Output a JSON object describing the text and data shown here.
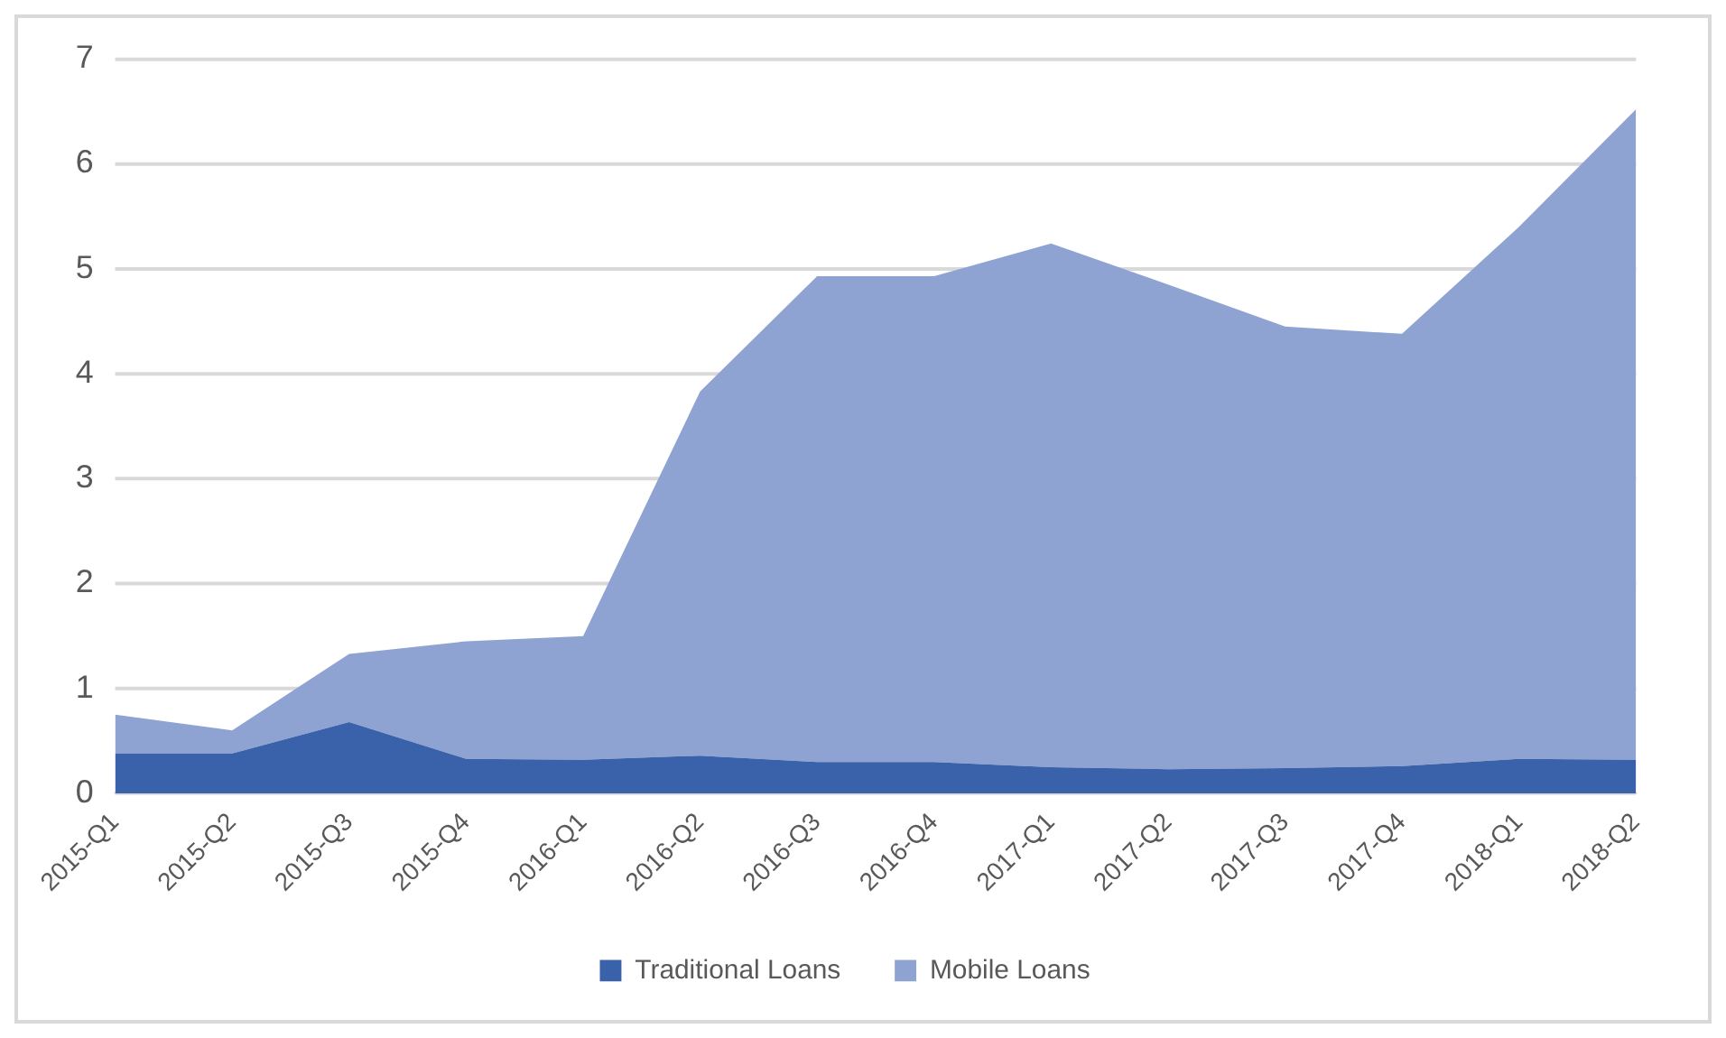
{
  "chart_data": {
    "type": "area",
    "stacked": true,
    "categories": [
      "2015-Q1",
      "2015-Q2",
      "2015-Q3",
      "2015-Q4",
      "2016-Q1",
      "2016-Q2",
      "2016-Q3",
      "2016-Q4",
      "2017-Q1",
      "2017-Q2",
      "2017-Q3",
      "2017-Q4",
      "2018-Q1",
      "2018-Q2"
    ],
    "series": [
      {
        "name": "Traditional Loans",
        "color": "#3a62ab",
        "values": [
          0.38,
          0.38,
          0.68,
          0.33,
          0.32,
          0.36,
          0.3,
          0.3,
          0.25,
          0.23,
          0.24,
          0.26,
          0.33,
          0.32
        ]
      },
      {
        "name": "Mobile Loans",
        "color": "#8fa3d3",
        "values": [
          0.37,
          0.22,
          0.65,
          1.12,
          1.18,
          3.47,
          4.63,
          4.63,
          4.99,
          4.62,
          4.21,
          4.12,
          5.07,
          6.2
        ]
      }
    ],
    "ylim": [
      0,
      7
    ],
    "yticks": [
      0,
      1,
      2,
      3,
      4,
      5,
      6,
      7
    ],
    "grid": "y",
    "legend": "bottom"
  }
}
